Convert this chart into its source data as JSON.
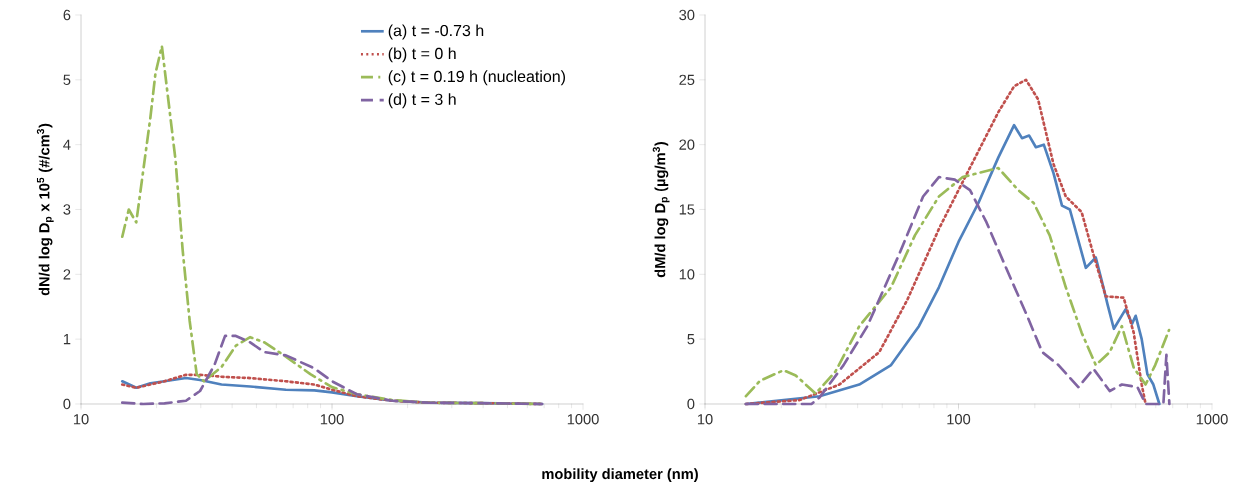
{
  "chart_data": [
    {
      "type": "line",
      "xlabel": "mobility diameter (nm)",
      "ylabel": "**dN/d log D$_{p}$ x 10$^{5}$ (#/cm$^{3}$)**",
      "log": "x",
      "xlim": [
        10,
        1000
      ],
      "xticks": [
        10,
        100,
        1000
      ],
      "ylim": [
        0,
        6
      ],
      "yticks": [
        0,
        1,
        2,
        3,
        4,
        5,
        6
      ],
      "legend": "top right",
      "marker": "none",
      "series": [
        {
          "name": "(a) t = -0.73 h",
          "color": "#4f81bd",
          "line_style": "solid",
          "x": [
            14.6,
            16.6,
            18.9,
            21.5,
            26.2,
            29.8,
            36.3,
            47.2,
            65.5,
            85,
            100,
            125.6,
            174,
            241,
            464,
            687
          ],
          "values": [
            0.35,
            0.25,
            0.32,
            0.35,
            0.4,
            0.37,
            0.3,
            0.27,
            0.22,
            0.21,
            0.18,
            0.12,
            0.05,
            0.02,
            0.01,
            0
          ]
        },
        {
          "name": "(b) t = 0 h",
          "color": "#c0504d",
          "line_style": "dotted",
          "x": [
            14.6,
            16.6,
            21.5,
            26.2,
            29.8,
            36.3,
            47.2,
            65.5,
            85,
            100,
            125.6,
            174,
            241,
            464,
            687
          ],
          "values": [
            0.3,
            0.25,
            0.35,
            0.45,
            0.45,
            0.42,
            0.4,
            0.35,
            0.3,
            0.22,
            0.12,
            0.05,
            0.02,
            0.01,
            0
          ]
        },
        {
          "name": "(c) t = 0.19 h (nucleation)",
          "color": "#9bbb59",
          "line_style": "dashdot",
          "x": [
            14.6,
            15.5,
            16.6,
            18.9,
            19.8,
            21,
            23.8,
            25.4,
            27.1,
            28.9,
            30.9,
            36.3,
            41.4,
            47.2,
            53.8,
            65.5,
            82,
            100,
            125.6,
            174,
            241,
            464,
            687
          ],
          "values": [
            2.58,
            3.0,
            2.8,
            4.42,
            5.1,
            5.52,
            3.76,
            2.38,
            1.28,
            0.46,
            0.35,
            0.57,
            0.9,
            1.03,
            0.95,
            0.73,
            0.46,
            0.26,
            0.15,
            0.06,
            0.02,
            0.01,
            0
          ]
        },
        {
          "name": "(d) t = 3 h",
          "color": "#8064a2",
          "line_style": "dashed",
          "x": [
            14.6,
            17.7,
            21.5,
            26.2,
            29.8,
            34,
            37.5,
            41.4,
            47.2,
            53.8,
            65.5,
            85,
            100,
            125.6,
            174,
            241,
            464,
            687
          ],
          "values": [
            0.02,
            0,
            0.01,
            0.05,
            0.2,
            0.6,
            1.05,
            1.05,
            0.95,
            0.8,
            0.75,
            0.55,
            0.35,
            0.15,
            0.05,
            0.02,
            0.01,
            0
          ]
        }
      ]
    },
    {
      "type": "line",
      "ylabel": "**dM/d log D$_{p}$ (µg/m$^{3}$)**",
      "log": "x",
      "xlim": [
        10,
        1000
      ],
      "xticks": [
        10,
        100,
        1000
      ],
      "ylim": [
        0,
        30
      ],
      "yticks": [
        0,
        5,
        10,
        15,
        20,
        25,
        30
      ],
      "marker": "none",
      "series": [
        {
          "color": "#4f81bd",
          "line_style": "solid",
          "x": [
            14.5,
            28.3,
            40.6,
            54.2,
            69.8,
            83.7,
            100,
            119.8,
            143.5,
            165.7,
            178,
            190,
            202,
            217,
            237,
            256,
            275,
            318,
            348,
            373,
            387,
            410,
            456,
            484,
            500,
            528,
            556,
            587,
            620
          ],
          "values": [
            0,
            0.6,
            1.5,
            3,
            6,
            9,
            12.5,
            15.5,
            19,
            21.5,
            20.5,
            20.7,
            19.8,
            20,
            17.8,
            15.3,
            15,
            10.5,
            11.3,
            9,
            7.7,
            5.8,
            7.3,
            6.2,
            6.8,
            5,
            2.3,
            1.5,
            0
          ]
        },
        {
          "color": "#c0504d",
          "line_style": "dotted",
          "x": [
            14.5,
            23.6,
            33.9,
            48.7,
            62.7,
            83.7,
            100,
            119.8,
            143.5,
            165.7,
            184.6,
            206,
            237,
            265,
            306,
            341,
            381,
            448,
            491,
            528,
            547
          ],
          "values": [
            0,
            0.3,
            1.5,
            4,
            8,
            13.5,
            16.5,
            19.5,
            22.5,
            24.5,
            25,
            23.5,
            18.5,
            16,
            14.8,
            11.5,
            8.3,
            8.2,
            5.5,
            1.5,
            0
          ]
        },
        {
          "color": "#9bbb59",
          "line_style": "dashdot",
          "x": [
            14.5,
            16.5,
            20.4,
            22.8,
            27.3,
            32.7,
            40.6,
            54.2,
            67.3,
            83.7,
            103.9,
            143.5,
            172,
            198,
            229,
            265,
            306,
            348,
            395,
            441,
            491,
            547,
            597,
            677
          ],
          "values": [
            0.6,
            1.8,
            2.6,
            2.2,
            0.8,
            2.5,
            6,
            9,
            13,
            16,
            17.5,
            18.2,
            16.5,
            15.5,
            13,
            9,
            5.5,
            3,
            4,
            6,
            2.8,
            1.5,
            3,
            5.7
          ]
        },
        {
          "color": "#8064a2",
          "line_style": "dashed",
          "x": [
            14.5,
            26.3,
            28.3,
            35.2,
            43.7,
            58.2,
            72.5,
            83.7,
            96.7,
            111,
            129,
            154,
            184.6,
            214,
            248,
            297,
            341,
            395,
            441,
            508,
            547,
            643,
            661,
            679
          ],
          "values": [
            0,
            0,
            0.5,
            3,
            6,
            11.5,
            16,
            17.5,
            17.3,
            16.5,
            14,
            10.5,
            7,
            4,
            3,
            1.3,
            2.7,
            1,
            1.5,
            1.3,
            0,
            0,
            3.8,
            0
          ]
        }
      ]
    }
  ]
}
